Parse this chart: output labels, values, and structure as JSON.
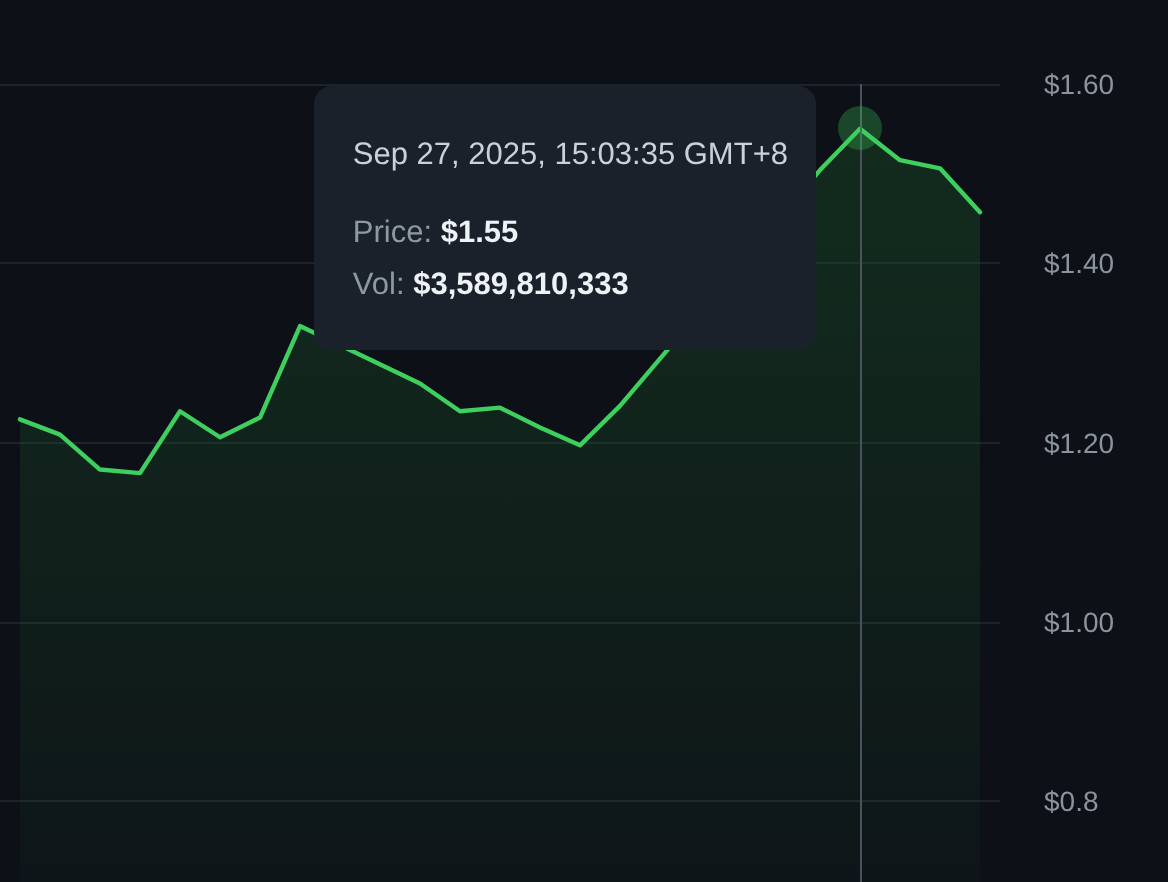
{
  "chart_data": {
    "type": "area",
    "categories": [
      null,
      null,
      null,
      null,
      null,
      null,
      null,
      null,
      null,
      null,
      null,
      null,
      null,
      null,
      null,
      null,
      null,
      null,
      null,
      null,
      null,
      null,
      null,
      null,
      null
    ],
    "series": [
      {
        "color": "#3ecf5e",
        "values": [
          1.226,
          1.209,
          1.17,
          1.166,
          1.235,
          1.206,
          1.228,
          1.33,
          null,
          null,
          1.266,
          1.235,
          1.239,
          1.217,
          1.197,
          1.241,
          null,
          null,
          null,
          null,
          1.504,
          1.55,
          1.515,
          1.506,
          1.457
        ]
      }
    ],
    "ylim": [
      0.71,
      1.6
    ],
    "yticks": [
      {
        "value": 0.8,
        "label": "$0.8"
      },
      {
        "value": 1,
        "label": "$1.00"
      },
      {
        "value": 1.2,
        "label": "$1.20"
      },
      {
        "value": 1.4,
        "label": "$1.40"
      },
      {
        "value": 1.6,
        "label": "$1.60"
      }
    ],
    "grid": "y",
    "tick_labels": "y",
    "marker": "none",
    "annotations": [
      "Sep 27, 2025, 15:03:35 GMT+8",
      "Price: $1.55",
      "Vol: $3,589,810,333"
    ]
  }
}
